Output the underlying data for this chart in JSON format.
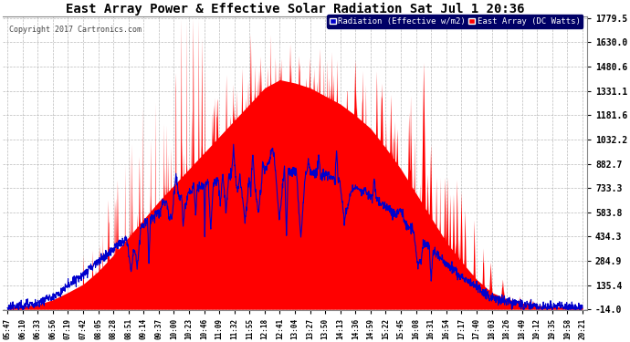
{
  "title": "East Array Power & Effective Solar Radiation Sat Jul 1 20:36",
  "copyright": "Copyright 2017 Cartronics.com",
  "legend_radiation": "Radiation (Effective w/m2)",
  "legend_east": "East Array (DC Watts)",
  "yticks": [
    -14.0,
    135.4,
    284.9,
    434.3,
    583.8,
    733.3,
    882.7,
    1032.2,
    1181.6,
    1331.1,
    1480.6,
    1630.0,
    1779.5
  ],
  "ymin": -14.0,
  "ymax": 1779.5,
  "bg_color": "#ffffff",
  "plot_bg": "#ffffff",
  "grid_color": "#aaaaaa",
  "red_color": "#ff0000",
  "blue_color": "#0000cc",
  "title_color": "#000000",
  "tick_label_color": "#000000",
  "copyright_color": "#444444",
  "xtick_labels": [
    "05:47",
    "06:10",
    "06:33",
    "06:56",
    "07:19",
    "07:42",
    "08:05",
    "08:28",
    "08:51",
    "09:14",
    "09:37",
    "10:00",
    "10:23",
    "10:46",
    "11:09",
    "11:32",
    "11:55",
    "12:18",
    "12:41",
    "13:04",
    "13:27",
    "13:50",
    "14:13",
    "14:36",
    "14:59",
    "15:22",
    "15:45",
    "16:08",
    "16:31",
    "16:54",
    "17:17",
    "17:40",
    "18:03",
    "18:26",
    "18:49",
    "19:12",
    "19:35",
    "19:58",
    "20:21"
  ],
  "n_points": 39
}
